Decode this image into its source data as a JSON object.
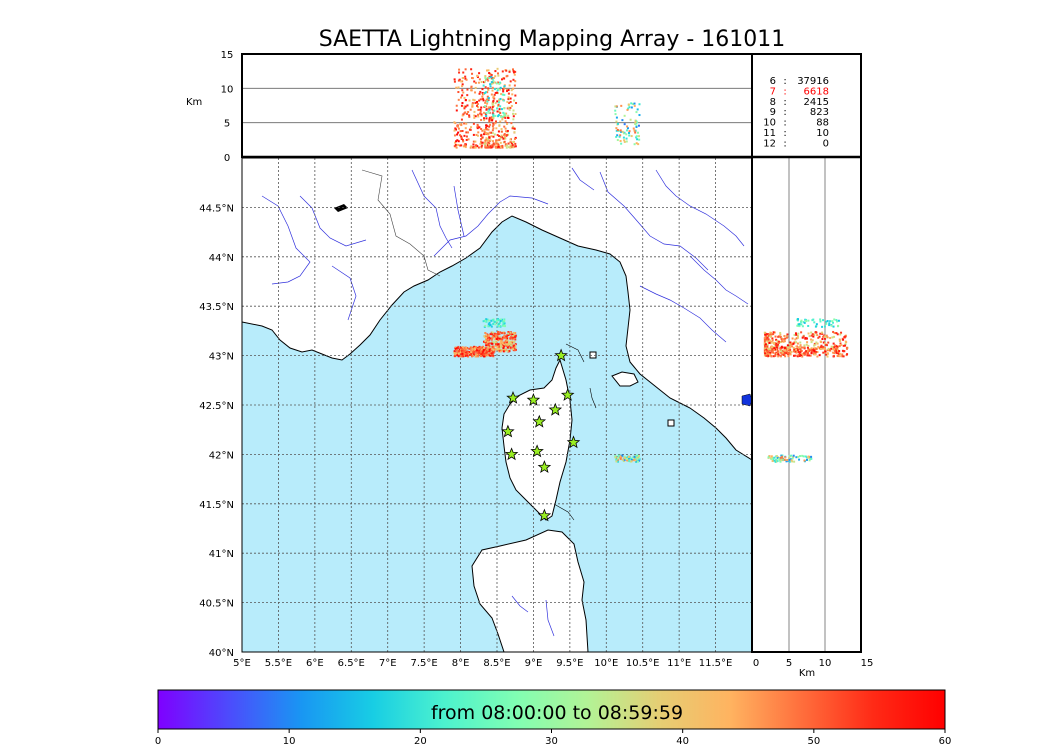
{
  "chart_data": {
    "type": "scatter",
    "title": "SAETTA Lightning Mapping Array - 161011",
    "map": {
      "lon_range": [
        5,
        12
      ],
      "lat_range": [
        40,
        45
      ],
      "lon_ticks": [
        "5°E",
        "5.5°E",
        "6°E",
        "6.5°E",
        "7°E",
        "7.5°E",
        "8°E",
        "8.5°E",
        "9°E",
        "9.5°E",
        "10°E",
        "10.5°E",
        "11°E",
        "11.5°E"
      ],
      "lat_ticks": [
        "40°N",
        "40.5°N",
        "41°N",
        "41.5°N",
        "42°N",
        "42.5°N",
        "43°N",
        "43.5°N",
        "44°N",
        "44.5°N"
      ],
      "grid": true,
      "sea_color": "#b8ecfb",
      "land_color": "#ffffff",
      "river_color": "#3333dd"
    },
    "altitude_panel": {
      "ylabel": "Km",
      "ylim": [
        0,
        15
      ],
      "yticks": [
        "0",
        "5",
        "10",
        "15"
      ]
    },
    "side_panel": {
      "xlabel": "Km",
      "xlim": [
        0,
        15
      ],
      "xticks": [
        "0",
        "5",
        "10",
        "15"
      ]
    },
    "station_counts": [
      {
        "stations": "6",
        "count": "37916",
        "color": "#000000"
      },
      {
        "stations": "7",
        "count": "6618",
        "color": "#ff0000"
      },
      {
        "stations": "8",
        "count": "2415",
        "color": "#000000"
      },
      {
        "stations": "9",
        "count": "823",
        "color": "#000000"
      },
      {
        "stations": "10",
        "count": "88",
        "color": "#000000"
      },
      {
        "stations": "11",
        "count": "10",
        "color": "#000000"
      },
      {
        "stations": "12",
        "count": "0",
        "color": "#000000"
      }
    ],
    "stations_lonlat": [
      [
        9.38,
        43.0
      ],
      [
        8.72,
        42.57
      ],
      [
        9.0,
        42.55
      ],
      [
        9.47,
        42.6
      ],
      [
        9.3,
        42.45
      ],
      [
        9.08,
        42.33
      ],
      [
        8.65,
        42.23
      ],
      [
        9.55,
        42.12
      ],
      [
        9.05,
        42.03
      ],
      [
        8.7,
        42.0
      ],
      [
        9.15,
        41.87
      ],
      [
        9.15,
        41.38
      ]
    ],
    "sources": [
      {
        "name": "",
        "lon": [
          7.9,
          8.45
        ],
        "lat": [
          43.0,
          43.1
        ],
        "alt": [
          1.5,
          13
        ],
        "time_min": [
          40,
          60
        ],
        "n": 260
      },
      {
        "name": "",
        "lon": [
          8.3,
          8.75
        ],
        "lat": [
          43.05,
          43.25
        ],
        "alt": [
          1.5,
          13
        ],
        "time_min": [
          35,
          60
        ],
        "n": 280
      },
      {
        "name": "",
        "lon": [
          8.3,
          8.6
        ],
        "lat": [
          43.3,
          43.38
        ],
        "alt": [
          6,
          12
        ],
        "time_min": [
          15,
          30
        ],
        "n": 50
      },
      {
        "name": "",
        "lon": [
          10.1,
          10.45
        ],
        "lat": [
          41.93,
          42.0
        ],
        "alt": [
          2,
          8
        ],
        "time_min": [
          8,
          50
        ],
        "n": 80
      }
    ],
    "colorbar": {
      "range": [
        0,
        60
      ],
      "ticks": [
        "0",
        "10",
        "20",
        "30",
        "40",
        "50",
        "60"
      ],
      "label": "from 08:00:00 to 08:59:59",
      "stops": [
        "#7f00ff",
        "#4c4cfc",
        "#1996f3",
        "#18cde4",
        "#4cf2ce",
        "#80feb3",
        "#b2f396",
        "#e5ce74",
        "#ffb360",
        "#ff6e3c",
        "#ff2a16",
        "#ff0000"
      ]
    }
  }
}
